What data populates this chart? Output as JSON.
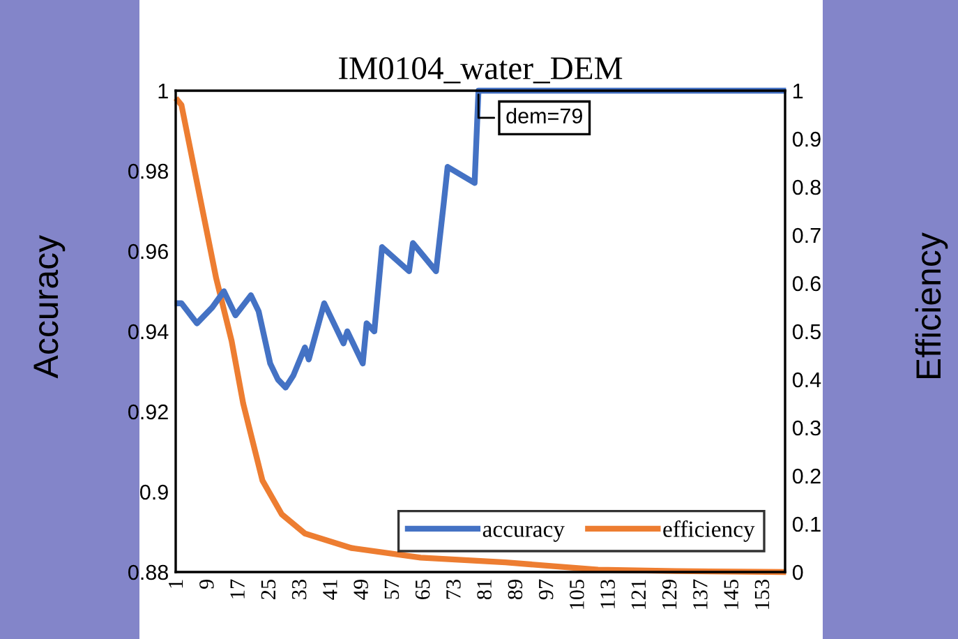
{
  "chart_data": {
    "type": "line",
    "title": "IM0104_water_DEM",
    "ylabel": "Accuracy",
    "y2label": "Efficiency",
    "xlim": [
      0.5,
      158.5
    ],
    "xticks": [
      1,
      9,
      17,
      25,
      33,
      41,
      49,
      57,
      65,
      73,
      81,
      89,
      97,
      105,
      113,
      121,
      129,
      137,
      145,
      153
    ],
    "ylim": [
      0.88,
      1
    ],
    "yticks": [
      {
        "value": 0.88,
        "label": "0.88"
      },
      {
        "value": 0.9,
        "label": "0.9"
      },
      {
        "value": 0.92,
        "label": "0.92"
      },
      {
        "value": 0.94,
        "label": "0.94"
      },
      {
        "value": 0.96,
        "label": "0.96"
      },
      {
        "value": 0.98,
        "label": "0.98"
      },
      {
        "value": 1,
        "label": "1"
      }
    ],
    "y2lim": [
      0,
      1
    ],
    "y2ticks": [
      0,
      0.1,
      0.2,
      0.3,
      0.4,
      0.5,
      0.6,
      0.7,
      0.8,
      0.9,
      1
    ],
    "series": [
      {
        "name": "accuracy",
        "color": "#4472c4",
        "x": [
          1,
          2,
          6,
          10,
          13,
          16,
          20,
          22,
          25,
          27,
          29,
          31,
          34,
          35,
          39,
          44,
          45,
          49,
          50,
          52,
          54,
          61,
          62,
          68,
          70,
          71,
          78,
          79,
          158
        ],
        "values": [
          0.947,
          0.947,
          0.942,
          0.946,
          0.95,
          0.944,
          0.949,
          0.945,
          0.932,
          0.928,
          0.926,
          0.929,
          0.936,
          0.933,
          0.947,
          0.937,
          0.94,
          0.932,
          0.942,
          0.94,
          0.961,
          0.955,
          0.962,
          0.955,
          0.972,
          0.981,
          0.977,
          1,
          1
        ]
      },
      {
        "name": "efficiency",
        "color": "#ed7d31",
        "axis": "y2",
        "x": [
          1,
          2,
          5,
          8,
          11,
          15,
          18,
          23,
          28,
          34,
          46,
          64,
          86,
          110,
          130,
          158
        ],
        "values": [
          0.98,
          0.97,
          0.85,
          0.73,
          0.61,
          0.48,
          0.35,
          0.19,
          0.12,
          0.08,
          0.05,
          0.03,
          0.02,
          0.005,
          0.002,
          0
        ]
      }
    ],
    "annotations": [
      {
        "text": "dem=79",
        "x": 79,
        "y": 1
      }
    ],
    "legend": "bottom right",
    "grid": false,
    "marker": "none",
    "line_style": "solid"
  }
}
